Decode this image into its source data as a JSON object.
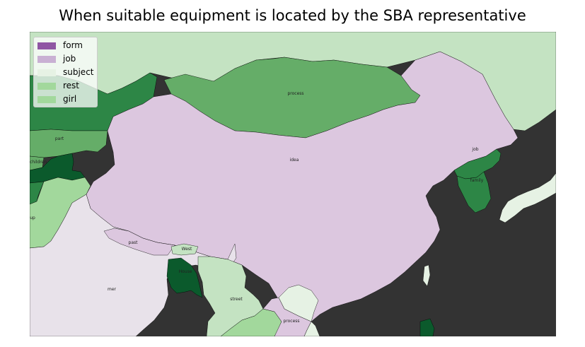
{
  "title": "When suitable equipment is located by the SBA representative",
  "colors": {
    "ocean": "#333333",
    "form": "#8f56a3",
    "job": "#dcc7df",
    "subject": "#e6f2e4",
    "rest": "#a2d89c",
    "girl": "#a2d89c",
    "light_green": "#c4e3c2",
    "mid_green": "#65ad68",
    "dark_green": "#2d8646",
    "darkest_green": "#0b5a2c",
    "pale_purple": "#e8e2ea"
  },
  "legend": [
    {
      "label": "form",
      "color": "#8f56a3"
    },
    {
      "label": "job",
      "color": "#c9b0d3"
    },
    {
      "label": "subject",
      "color": "#e6f2e4"
    },
    {
      "label": "rest",
      "color": "#a2d89c"
    },
    {
      "label": "girl",
      "color": "#a2d89c"
    }
  ],
  "region_labels": {
    "china": "idea",
    "mongolia": "process",
    "north_korea": "job",
    "south_korea": "family",
    "kyrgyzstan": "part",
    "tajikistan": "children",
    "pakistan": "up",
    "nepal": "past",
    "bhutan": "West",
    "bangladesh": "House",
    "india": "mer",
    "myanmar": "street",
    "laos": "process"
  }
}
